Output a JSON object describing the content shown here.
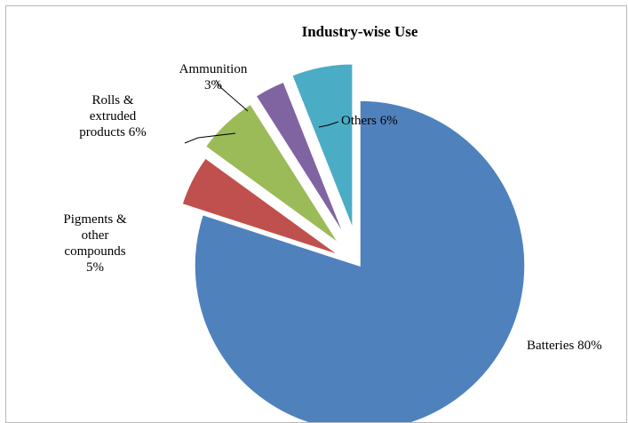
{
  "chart_data": {
    "type": "pie",
    "title": "Industry-wise Use",
    "slices": [
      {
        "name": "Batteries",
        "value": 80,
        "label": [
          "Batteries 80%"
        ],
        "color": "#4f81bd"
      },
      {
        "name": "Pigments & other compounds",
        "value": 5,
        "label": [
          "Pigments &",
          "other",
          "compounds",
          "5%"
        ],
        "color": "#c0504d"
      },
      {
        "name": "Rolls & extruded products",
        "value": 6,
        "label": [
          "Rolls &",
          "extruded",
          "products 6%"
        ],
        "color": "#9bbb59"
      },
      {
        "name": "Ammunition",
        "value": 3,
        "label": [
          "Ammunition",
          "3%"
        ],
        "color": "#8064a2"
      },
      {
        "name": "Others",
        "value": 6,
        "label": [
          "Others 6%"
        ],
        "color": "#4bacc6"
      }
    ],
    "legend": "none",
    "exploded": true
  }
}
